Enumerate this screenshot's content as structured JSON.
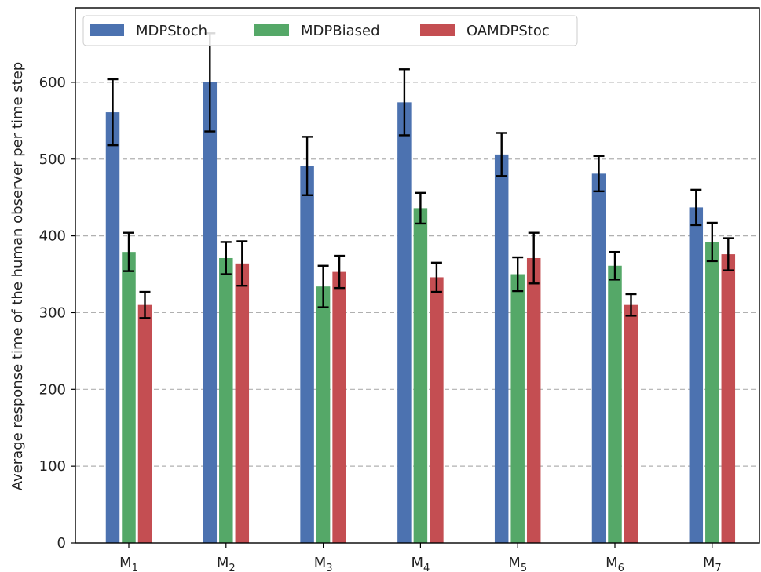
{
  "chart_data": {
    "type": "bar",
    "title": "",
    "xlabel": "",
    "ylabel": "Average response time of the human observer per time step",
    "categories": [
      {
        "base": "M",
        "sub": "1"
      },
      {
        "base": "M",
        "sub": "2"
      },
      {
        "base": "M",
        "sub": "3"
      },
      {
        "base": "M",
        "sub": "4"
      },
      {
        "base": "M",
        "sub": "5"
      },
      {
        "base": "M",
        "sub": "6"
      },
      {
        "base": "M",
        "sub": "7"
      }
    ],
    "ylim": [
      0,
      697
    ],
    "yticks": [
      "0",
      "100",
      "200",
      "300",
      "400",
      "500",
      "600"
    ],
    "grid": "horizontal dashed",
    "legend_position": "top",
    "series": [
      {
        "name": "MDPStoch",
        "color": "#4c72b0",
        "values": [
          561,
          600,
          491,
          574,
          506,
          481,
          437
        ],
        "errors": [
          43,
          64,
          38,
          43,
          28,
          23,
          23
        ]
      },
      {
        "name": "MDPBiased",
        "color": "#55a868",
        "values": [
          379,
          371,
          334,
          436,
          350,
          361,
          392
        ],
        "errors": [
          25,
          21,
          27,
          20,
          22,
          18,
          25
        ]
      },
      {
        "name": "OAMDPStoc",
        "color": "#c44e52",
        "values": [
          310,
          364,
          353,
          346,
          371,
          310,
          376
        ],
        "errors": [
          17,
          29,
          21,
          19,
          33,
          14,
          21
        ]
      }
    ]
  }
}
